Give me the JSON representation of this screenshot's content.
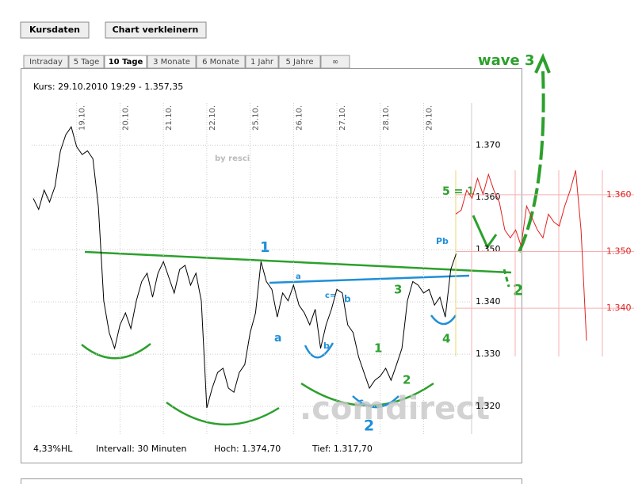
{
  "buttons": [
    "Kursdaten",
    "Chart verkleinern"
  ],
  "tabs": [
    "Intraday",
    "5 Tage",
    "10 Tage",
    "3 Monate",
    "6 Monate",
    "1 Jahr",
    "5 Jahre",
    "∞"
  ],
  "quote": "Kurs: 29.10.2010 19:29 - 1.357,35",
  "footer": {
    "range": "4,33%HL",
    "interval": "Intervall: 30 Minuten",
    "high": "Hoch: 1.374,70",
    "low": "Tief: 1.317,70"
  },
  "annotations": [
    "wave 3",
    "5 = 1",
    "1",
    "a",
    "a",
    "c=",
    "b",
    "b",
    "3",
    "1",
    "2",
    "c",
    "2",
    "2",
    "Pb",
    "4",
    "by resci",
    ".comdirect"
  ],
  "chart_data": [
    {
      "type": "line",
      "color": "#000000",
      "categories": [
        null,
        null,
        null,
        null,
        null,
        null,
        null,
        null,
        "19.10.",
        null,
        null,
        null,
        null,
        null,
        null,
        null,
        "20.10.",
        null,
        null,
        null,
        null,
        null,
        null,
        null,
        "21.10.",
        null,
        null,
        null,
        null,
        null,
        null,
        null,
        "22.10.",
        null,
        null,
        null,
        null,
        null,
        null,
        null,
        "25.10.",
        null,
        null,
        null,
        null,
        null,
        null,
        null,
        "26.10.",
        null,
        null,
        null,
        null,
        null,
        null,
        null,
        "27.10.",
        null,
        null,
        null,
        null,
        null,
        null,
        null,
        "28.10.",
        null,
        null,
        null,
        null,
        null,
        null,
        null,
        "29.10.",
        null,
        null,
        null,
        null,
        null,
        null
      ],
      "values": [
        1.3598,
        1.3577,
        1.3614,
        1.3591,
        1.3621,
        1.3689,
        1.372,
        1.3735,
        1.3697,
        1.3682,
        1.3689,
        1.3674,
        1.3583,
        1.3402,
        1.3341,
        1.3311,
        1.3356,
        1.3379,
        1.3349,
        1.3402,
        1.3439,
        1.3455,
        1.3409,
        1.3455,
        1.3477,
        1.3447,
        1.3417,
        1.3462,
        1.347,
        1.3432,
        1.3455,
        1.3402,
        1.3197,
        1.3235,
        1.3265,
        1.3273,
        1.3235,
        1.3227,
        1.3265,
        1.328,
        1.3341,
        1.3379,
        1.3477,
        1.3439,
        1.3424,
        1.3371,
        1.3417,
        1.3402,
        1.3432,
        1.3394,
        1.3379,
        1.3356,
        1.3386,
        1.3311,
        1.3356,
        1.3386,
        1.3424,
        1.3417,
        1.3356,
        1.3341,
        1.3295,
        1.3265,
        1.3235,
        1.325,
        1.3258,
        1.3273,
        1.325,
        1.328,
        1.3311,
        1.3402,
        1.3439,
        1.3432,
        1.3417,
        1.3424,
        1.3394,
        1.3409,
        1.3371,
        1.3462,
        1.3492
      ],
      "ylim": [
        1.3147,
        1.3758
      ],
      "yticks": [
        {
          "value": 1.32,
          "label": "1.320"
        },
        {
          "value": 1.33,
          "label": "1.330"
        },
        {
          "value": 1.34,
          "label": "1.340"
        },
        {
          "value": 1.35,
          "label": "1.350"
        },
        {
          "value": 1.36,
          "label": "1.360"
        },
        {
          "value": 1.37,
          "label": "1.370"
        }
      ],
      "grid": true
    },
    {
      "type": "line",
      "color": "#e02020",
      "values": [
        1.3566,
        1.3573,
        1.3608,
        1.3594,
        1.3629,
        1.3601,
        1.3636,
        1.3608,
        1.3587,
        1.3538,
        1.3524,
        1.3538,
        1.351,
        1.358,
        1.3559,
        1.3538,
        1.3524,
        1.3566,
        1.3552,
        1.3545,
        1.358,
        1.3608,
        1.3643,
        1.3538,
        1.3343
      ],
      "ylim": [
        1.3178,
        1.3741
      ],
      "yticks": [
        {
          "value": 1.34,
          "label": "1.340"
        },
        {
          "value": 1.35,
          "label": "1.350"
        },
        {
          "value": 1.36,
          "label": "1.360"
        }
      ],
      "grid": true
    }
  ]
}
